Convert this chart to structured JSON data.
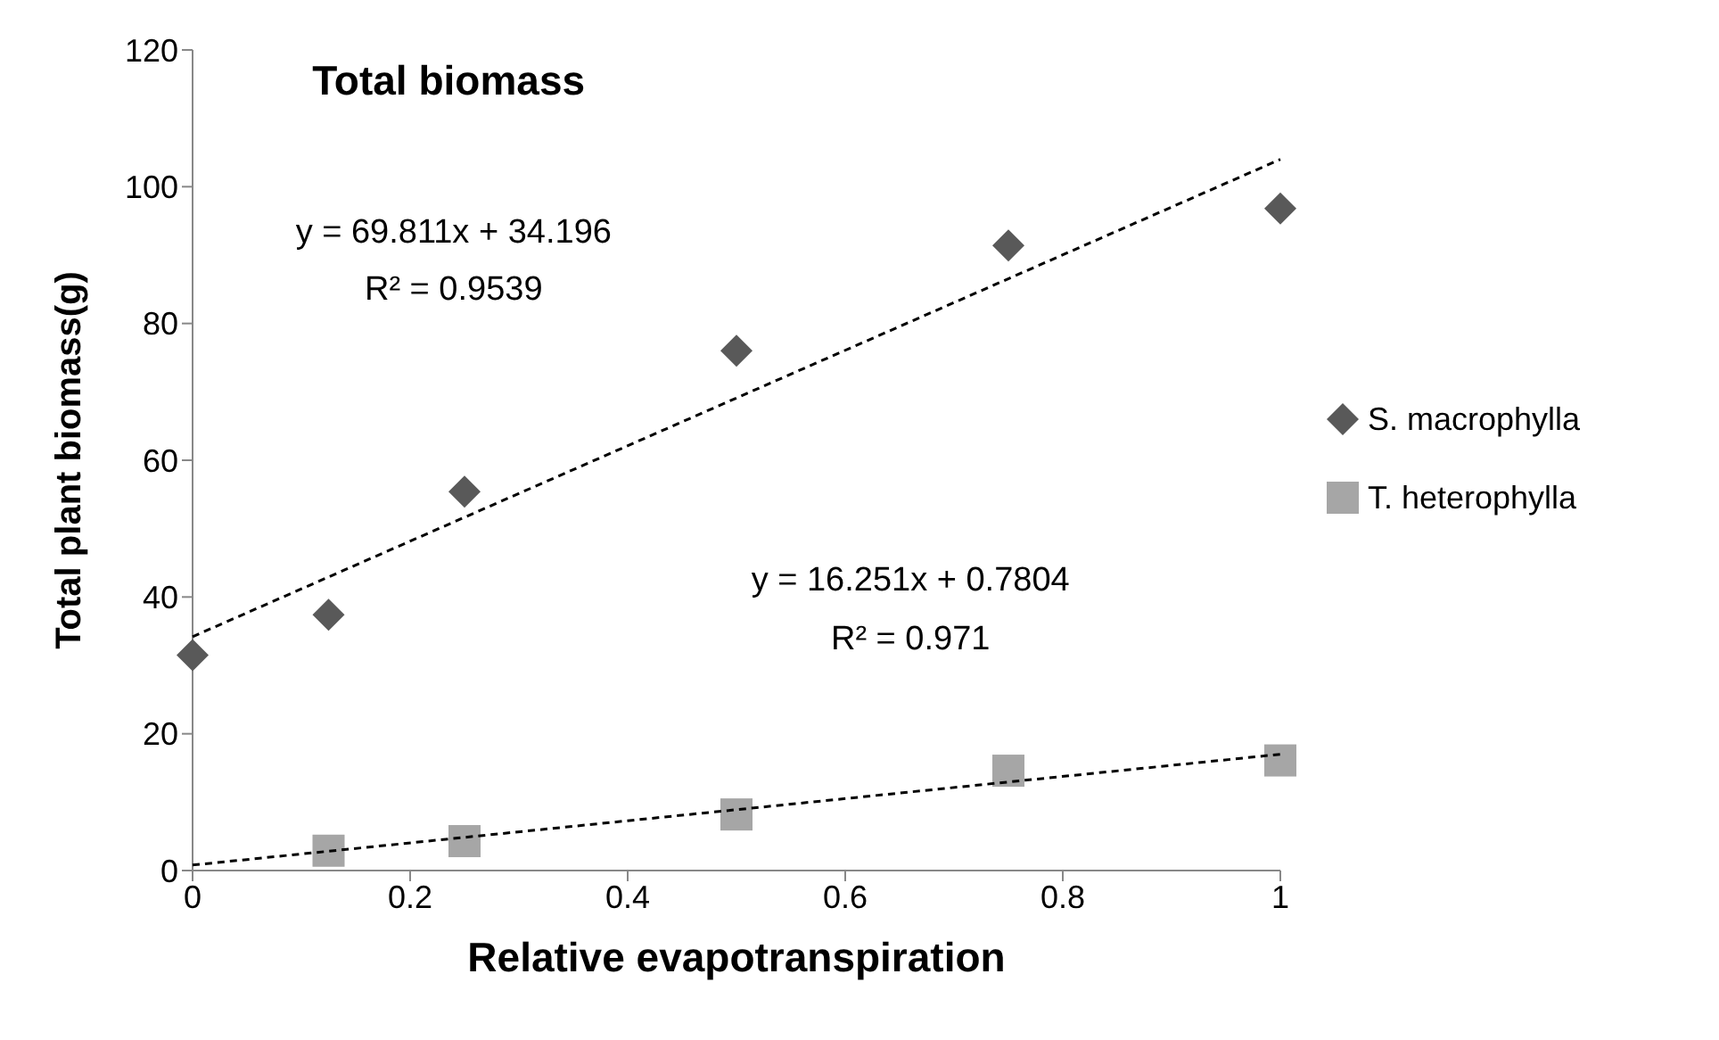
{
  "chart_data": {
    "type": "scatter",
    "title": "Total biomass",
    "xlabel": "Relative evapotranspiration",
    "ylabel": "Total plant biomass(g)",
    "xlim": [
      0,
      1
    ],
    "xticks": [
      0,
      0.2,
      0.4,
      0.6,
      0.8,
      1
    ],
    "ylim": [
      0,
      120
    ],
    "yticks": [
      0,
      20,
      40,
      60,
      80,
      100,
      120
    ],
    "grid": false,
    "legend": "right",
    "series": [
      {
        "name": "S. macrophylla",
        "color": "#595959",
        "marker": "diamond",
        "x": [
          0,
          0.125,
          0.25,
          0.5,
          0.75,
          1
        ],
        "values": [
          31.5,
          37.4,
          55.4,
          76,
          91.4,
          96.8
        ]
      },
      {
        "name": "T. heterophylla",
        "color": "#a6a6a6",
        "marker": "square",
        "x": [
          0.125,
          0.25,
          0.5,
          0.75,
          1
        ],
        "values": [
          2.9,
          4.3,
          8.2,
          14.6,
          16.1
        ]
      },
      {
        "type": "line",
        "color": "#000000",
        "line_style": "dashed",
        "x": [
          0,
          1
        ],
        "values": [
          34.2,
          104
        ]
      },
      {
        "type": "line",
        "color": "#000000",
        "line_style": "dashed",
        "x": [
          0,
          1
        ],
        "values": [
          0.8,
          17
        ]
      }
    ],
    "annotations": [
      "y = 69.811x + 34.196",
      "R² = 0.9539",
      "y = 16.251x + 0.7804",
      "R² = 0.971"
    ]
  }
}
